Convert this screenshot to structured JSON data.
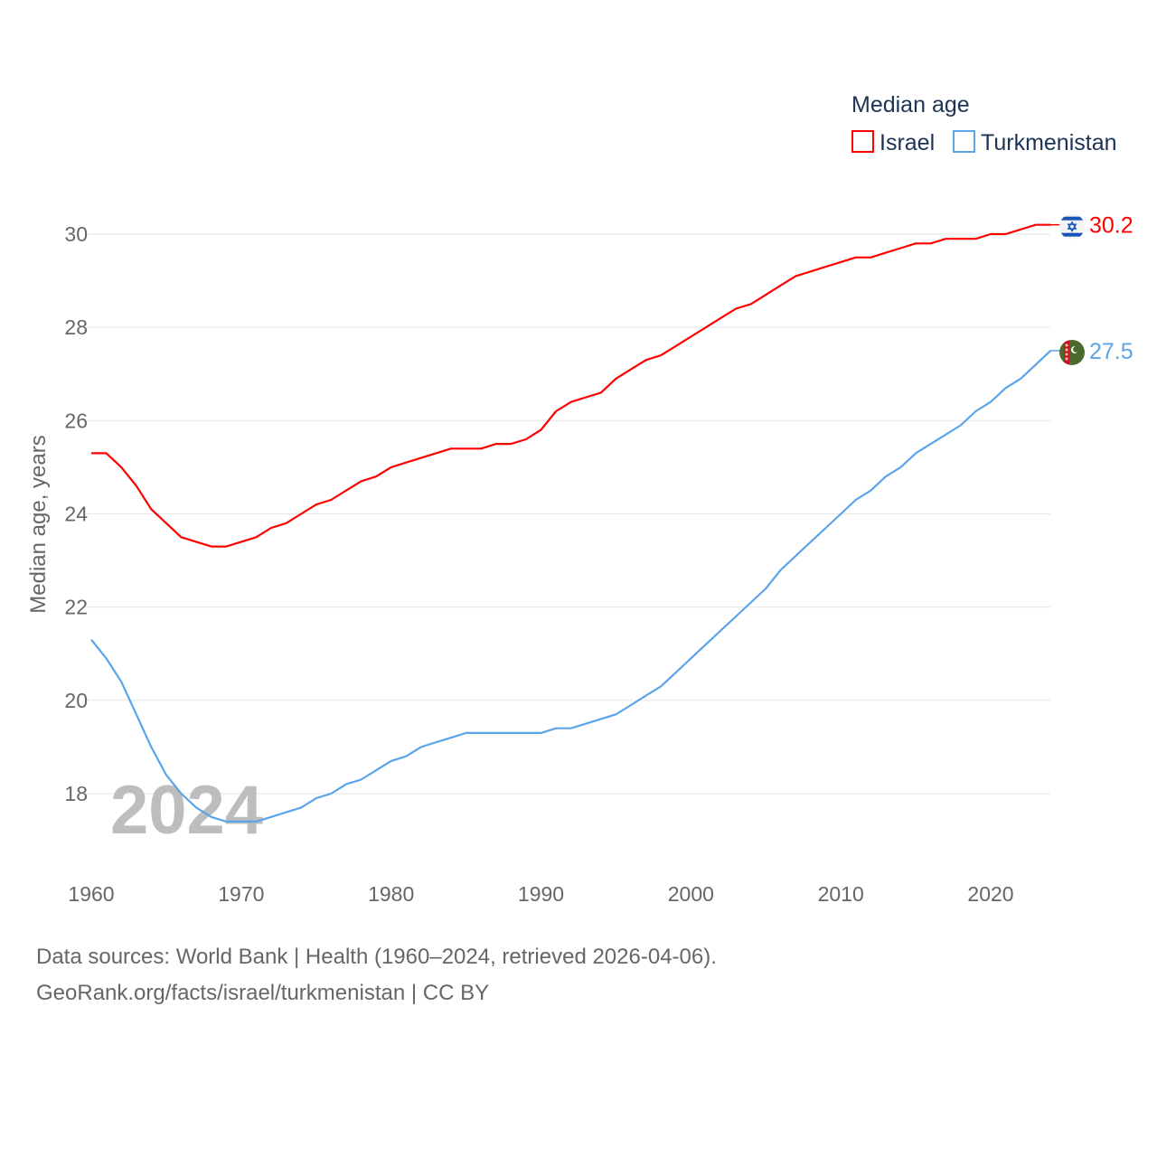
{
  "chart_data": {
    "type": "line",
    "title": "",
    "legend_title": "Median age",
    "legend_position": "top-right",
    "ylabel": "Median age, years",
    "xlabel": "",
    "xlim": [
      1960,
      2024
    ],
    "ylim": [
      16.6,
      30.5
    ],
    "xticks": [
      "1960",
      "1970",
      "1980",
      "1990",
      "2000",
      "2010",
      "2020"
    ],
    "yticks": [
      "18",
      "20",
      "22",
      "24",
      "26",
      "28",
      "30"
    ],
    "grid": true,
    "watermark_year": "2024",
    "x": [
      1960,
      1961,
      1962,
      1963,
      1964,
      1965,
      1966,
      1967,
      1968,
      1969,
      1970,
      1971,
      1972,
      1973,
      1974,
      1975,
      1976,
      1977,
      1978,
      1979,
      1980,
      1981,
      1982,
      1983,
      1984,
      1985,
      1986,
      1987,
      1988,
      1989,
      1990,
      1991,
      1992,
      1993,
      1994,
      1995,
      1996,
      1997,
      1998,
      1999,
      2000,
      2001,
      2002,
      2003,
      2004,
      2005,
      2006,
      2007,
      2008,
      2009,
      2010,
      2011,
      2012,
      2013,
      2014,
      2015,
      2016,
      2017,
      2018,
      2019,
      2020,
      2021,
      2022,
      2023,
      2024
    ],
    "series": [
      {
        "name": "Israel",
        "color": "#ff0000",
        "end_label": "30.2",
        "flag": "israel-flag",
        "values": [
          25.3,
          25.3,
          25.0,
          24.6,
          24.1,
          23.8,
          23.5,
          23.4,
          23.3,
          23.3,
          23.4,
          23.5,
          23.7,
          23.8,
          24.0,
          24.2,
          24.3,
          24.5,
          24.7,
          24.8,
          25.0,
          25.1,
          25.2,
          25.3,
          25.4,
          25.4,
          25.4,
          25.5,
          25.5,
          25.6,
          25.8,
          26.2,
          26.4,
          26.5,
          26.6,
          26.9,
          27.1,
          27.3,
          27.4,
          27.6,
          27.8,
          28.0,
          28.2,
          28.4,
          28.5,
          28.7,
          28.9,
          29.1,
          29.2,
          29.3,
          29.4,
          29.5,
          29.5,
          29.6,
          29.7,
          29.8,
          29.8,
          29.9,
          29.9,
          29.9,
          30.0,
          30.0,
          30.1,
          30.2,
          30.2
        ]
      },
      {
        "name": "Turkmenistan",
        "color": "#5ba4ea",
        "end_label": "27.5",
        "flag": "turkmenistan-flag",
        "values": [
          21.3,
          20.9,
          20.4,
          19.7,
          19.0,
          18.4,
          18.0,
          17.7,
          17.5,
          17.4,
          17.4,
          17.4,
          17.5,
          17.6,
          17.7,
          17.9,
          18.0,
          18.2,
          18.3,
          18.5,
          18.7,
          18.8,
          19.0,
          19.1,
          19.2,
          19.3,
          19.3,
          19.3,
          19.3,
          19.3,
          19.3,
          19.4,
          19.4,
          19.5,
          19.6,
          19.7,
          19.9,
          20.1,
          20.3,
          20.6,
          20.9,
          21.2,
          21.5,
          21.8,
          22.1,
          22.4,
          22.8,
          23.1,
          23.4,
          23.7,
          24.0,
          24.3,
          24.5,
          24.8,
          25.0,
          25.3,
          25.5,
          25.7,
          25.9,
          26.2,
          26.4,
          26.7,
          26.9,
          27.2,
          27.5
        ]
      }
    ]
  },
  "footer": {
    "line1": "Data sources: World Bank | Health (1960–2024, retrieved 2026-04-06).",
    "line2": "GeoRank.org/facts/israel/turkmenistan | CC BY"
  }
}
